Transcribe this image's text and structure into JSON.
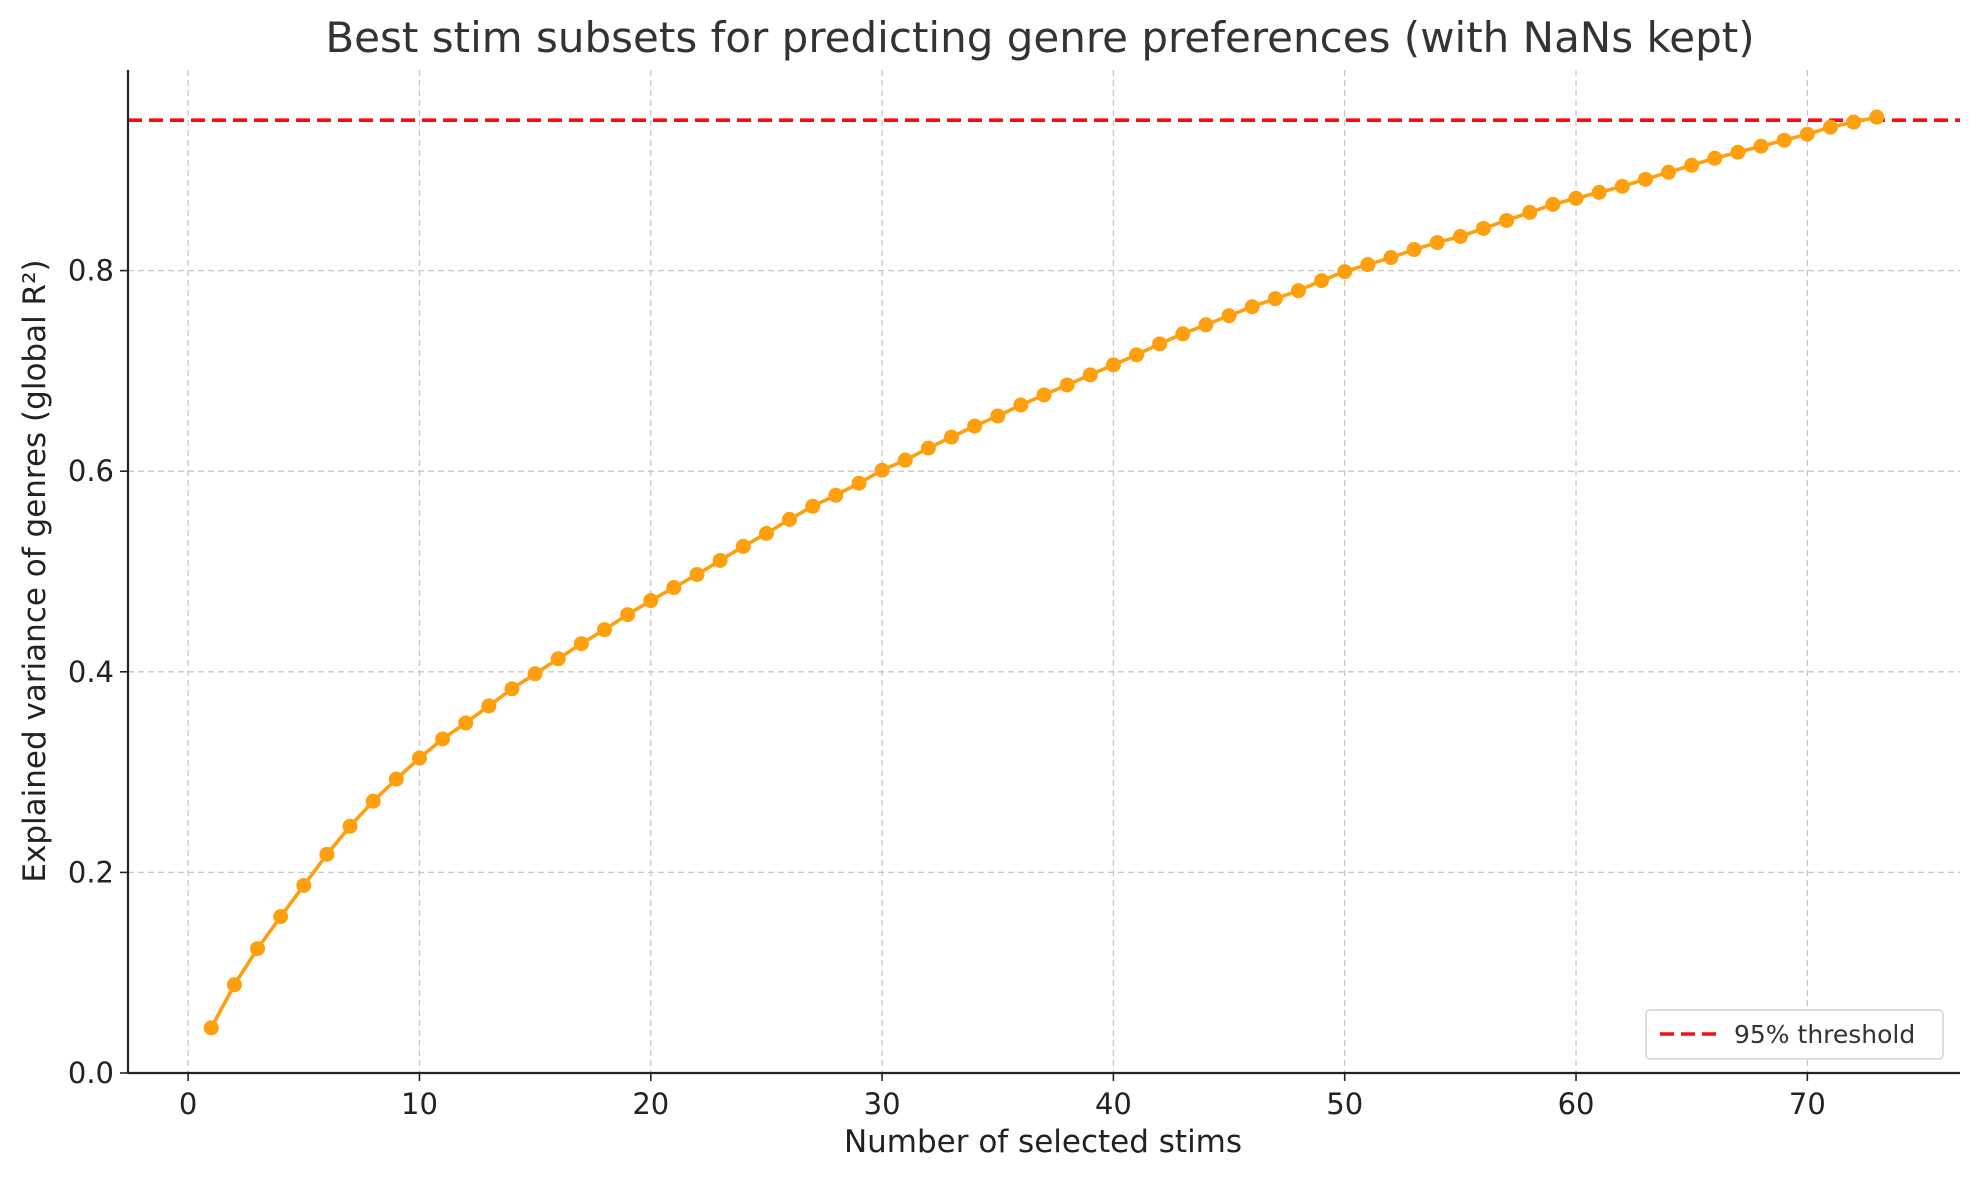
{
  "chart_data": {
    "type": "line",
    "title": "Best stim subsets for predicting genre preferences (with NaNs kept)",
    "xlabel": "Number of selected stims",
    "ylabel": "Explained variance of genres (global R²)",
    "xlim": [
      -2.6,
      76.6
    ],
    "ylim": [
      0.0,
      1.0
    ],
    "xticks": [
      0,
      10,
      20,
      30,
      40,
      50,
      60,
      70
    ],
    "xtick_labels": [
      "0",
      "10",
      "20",
      "30",
      "40",
      "50",
      "60",
      "70"
    ],
    "yticks": [
      0.0,
      0.2,
      0.4,
      0.6,
      0.8
    ],
    "ytick_labels": [
      "0.0",
      "0.2",
      "0.4",
      "0.6",
      "0.8"
    ],
    "grid": true,
    "series": [
      {
        "color": "#ff9f0e",
        "marker": "circle",
        "x": [
          1,
          2,
          3,
          4,
          5,
          6,
          7,
          8,
          9,
          10,
          11,
          12,
          13,
          14,
          15,
          16,
          17,
          18,
          19,
          20,
          21,
          22,
          23,
          24,
          25,
          26,
          27,
          28,
          29,
          30,
          31,
          32,
          33,
          34,
          35,
          36,
          37,
          38,
          39,
          40,
          41,
          42,
          43,
          44,
          45,
          46,
          47,
          48,
          49,
          50,
          51,
          52,
          53,
          54,
          55,
          56,
          57,
          58,
          59,
          60,
          61,
          62,
          63,
          64,
          65,
          66,
          67,
          68,
          69,
          70,
          71,
          72,
          73
        ],
        "y": [
          0.045,
          0.088,
          0.124,
          0.156,
          0.187,
          0.218,
          0.246,
          0.271,
          0.293,
          0.314,
          0.333,
          0.349,
          0.366,
          0.383,
          0.398,
          0.413,
          0.428,
          0.442,
          0.457,
          0.471,
          0.484,
          0.497,
          0.511,
          0.525,
          0.538,
          0.552,
          0.565,
          0.576,
          0.588,
          0.601,
          0.611,
          0.623,
          0.634,
          0.645,
          0.655,
          0.666,
          0.676,
          0.686,
          0.696,
          0.706,
          0.716,
          0.727,
          0.737,
          0.746,
          0.755,
          0.764,
          0.772,
          0.78,
          0.79,
          0.799,
          0.806,
          0.813,
          0.821,
          0.828,
          0.834,
          0.842,
          0.85,
          0.858,
          0.866,
          0.872,
          0.878,
          0.884,
          0.891,
          0.898,
          0.905,
          0.912,
          0.918,
          0.924,
          0.93,
          0.936,
          0.943,
          0.948,
          0.953
        ]
      }
    ],
    "reference_lines": [
      {
        "orientation": "horizontal",
        "y": 0.95,
        "color": "#ee1111",
        "style": "dashed",
        "label": "95% threshold"
      }
    ],
    "legend": {
      "position": "lower-right",
      "entries": [
        "95% threshold"
      ]
    }
  }
}
